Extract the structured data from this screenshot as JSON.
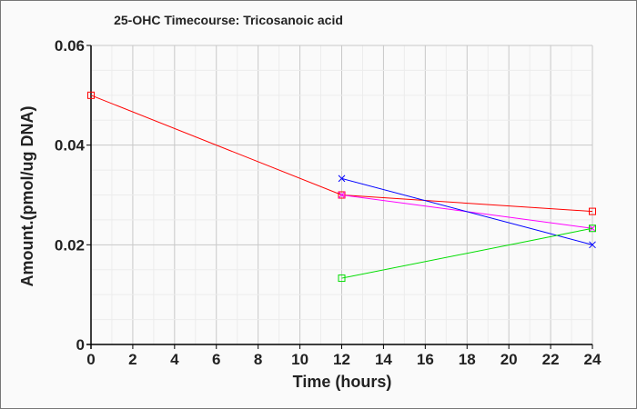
{
  "chart_data": {
    "type": "line",
    "title": "25-OHC Timecourse: Tricosanoic acid",
    "xlabel": "Time (hours)",
    "ylabel": "Amount.(pmol/ug DNA)",
    "xlim": [
      0,
      24
    ],
    "ylim": [
      0,
      0.06
    ],
    "xticks": [
      "0",
      "2",
      "4",
      "6",
      "8",
      "10",
      "12",
      "14",
      "16",
      "18",
      "20",
      "22",
      "24"
    ],
    "yticks": [
      "0",
      "0.02",
      "0.04",
      "0.06"
    ],
    "grid": true,
    "series": [
      {
        "name": "red",
        "color": "#ff0000",
        "marker": "square",
        "x": [
          0,
          12,
          24
        ],
        "y": [
          0.05,
          0.03,
          0.0267
        ]
      },
      {
        "name": "magenta",
        "color": "#ff00ff",
        "marker": "x",
        "x": [
          12,
          24
        ],
        "y": [
          0.03,
          0.0233
        ]
      },
      {
        "name": "blue",
        "color": "#0000ff",
        "marker": "x",
        "x": [
          12,
          24
        ],
        "y": [
          0.0333,
          0.02
        ]
      },
      {
        "name": "green",
        "color": "#00dd00",
        "marker": "square",
        "x": [
          12,
          24
        ],
        "y": [
          0.0133,
          0.0233
        ]
      }
    ]
  }
}
